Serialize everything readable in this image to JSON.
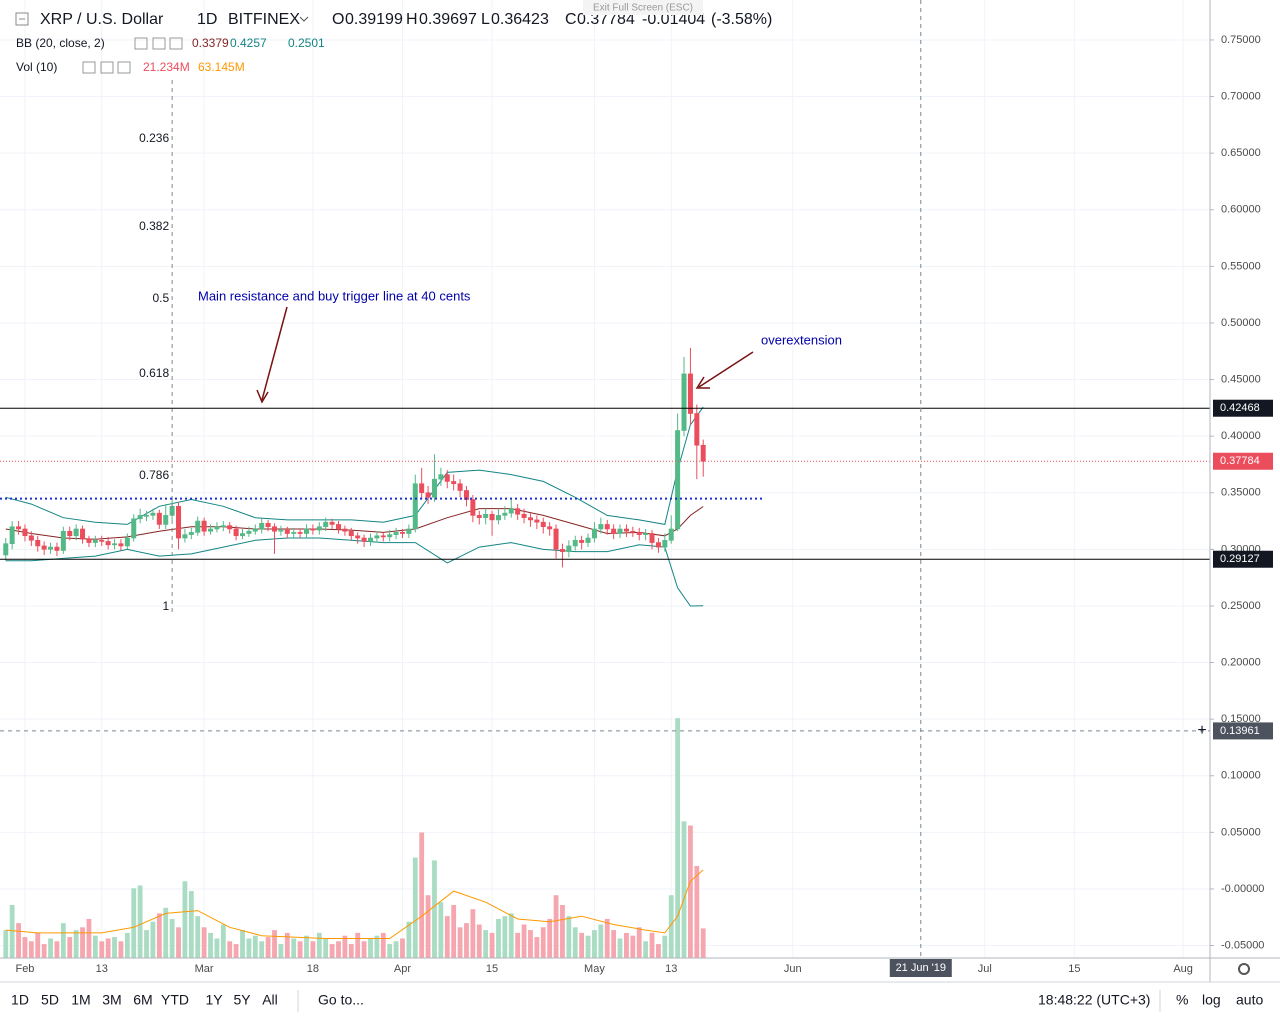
{
  "header": {
    "symbol": "XRP / U.S. Dollar",
    "interval": "1D",
    "exchange": "BITFINEX",
    "ohlc": [
      {
        "label": "O",
        "value": 0.39199
      },
      {
        "label": "H",
        "value": 0.39697
      },
      {
        "label": "L",
        "value": 0.36423
      },
      {
        "label": "C",
        "value": 0.37784
      }
    ],
    "change": -0.01404,
    "change_percent": {
      "value": -3.58,
      "label": "(-3.58%)"
    }
  },
  "indicators": {
    "bb_name": "BB (20, close, 2)",
    "vol_name": "Vol (10)",
    "vol_label": "21.234M",
    "vol_ma_label": "63.145M"
  },
  "tooltip": "Exit Full Screen (ESC)",
  "toolbar": {
    "ranges": [
      "1D",
      "5D",
      "1M",
      "3M",
      "6M",
      "YTD",
      "1Y",
      "5Y",
      "All"
    ],
    "goto": "Go to...",
    "clock": "18:48:22 (UTC+3)",
    "options": [
      "%",
      "log",
      "auto"
    ]
  },
  "chart_data": {
    "type": "candlestick",
    "x": [
      29,
      30,
      31,
      32,
      33,
      34,
      35,
      36,
      37,
      38,
      39,
      40,
      41,
      42,
      43,
      44,
      45,
      46,
      47,
      48,
      49,
      50,
      51,
      52,
      53,
      54,
      55,
      56,
      57,
      58,
      59,
      60,
      61,
      62,
      63,
      64,
      65,
      66,
      67,
      68,
      69,
      70,
      71,
      72,
      73,
      74,
      75,
      76,
      77,
      78,
      79,
      80,
      81,
      82,
      83,
      84,
      85,
      86,
      87,
      88,
      89,
      90,
      91,
      92,
      93,
      94,
      95,
      96,
      97,
      98,
      99,
      100,
      101,
      102,
      103,
      104,
      105,
      106,
      107,
      108,
      109,
      110,
      111,
      112,
      113,
      114,
      115,
      116,
      117,
      118,
      119,
      120,
      121,
      122,
      123,
      124,
      125,
      126,
      127,
      128,
      129,
      130,
      131,
      132,
      133,
      134,
      135,
      136,
      137,
      138
    ],
    "open": [
      0.295,
      0.305,
      0.32,
      0.318,
      0.312,
      0.308,
      0.303,
      0.3,
      0.302,
      0.299,
      0.316,
      0.312,
      0.318,
      0.309,
      0.306,
      0.308,
      0.307,
      0.304,
      0.305,
      0.303,
      0.31,
      0.327,
      0.33,
      0.33,
      0.332,
      0.322,
      0.33,
      0.338,
      0.31,
      0.313,
      0.315,
      0.325,
      0.316,
      0.318,
      0.32,
      0.321,
      0.318,
      0.312,
      0.314,
      0.316,
      0.318,
      0.323,
      0.32,
      0.316,
      0.317,
      0.314,
      0.315,
      0.314,
      0.318,
      0.317,
      0.32,
      0.324,
      0.322,
      0.318,
      0.316,
      0.312,
      0.31,
      0.307,
      0.31,
      0.312,
      0.311,
      0.313,
      0.315,
      0.314,
      0.318,
      0.358,
      0.35,
      0.346,
      0.362,
      0.366,
      0.36,
      0.358,
      0.352,
      0.344,
      0.33,
      0.328,
      0.331,
      0.326,
      0.33,
      0.332,
      0.336,
      0.331,
      0.328,
      0.326,
      0.324,
      0.32,
      0.318,
      0.3,
      0.298,
      0.303,
      0.308,
      0.306,
      0.31,
      0.318,
      0.322,
      0.318,
      0.314,
      0.318,
      0.316,
      0.315,
      0.313,
      0.314,
      0.306,
      0.302,
      0.308,
      0.318,
      0.405,
      0.455,
      0.42,
      0.39199
    ],
    "high": [
      0.31,
      0.325,
      0.325,
      0.322,
      0.316,
      0.312,
      0.307,
      0.306,
      0.306,
      0.32,
      0.32,
      0.322,
      0.321,
      0.312,
      0.312,
      0.312,
      0.311,
      0.309,
      0.309,
      0.314,
      0.331,
      0.336,
      0.334,
      0.336,
      0.335,
      0.34,
      0.345,
      0.342,
      0.318,
      0.319,
      0.329,
      0.328,
      0.322,
      0.324,
      0.325,
      0.324,
      0.321,
      0.318,
      0.32,
      0.322,
      0.327,
      0.326,
      0.323,
      0.321,
      0.32,
      0.319,
      0.318,
      0.322,
      0.322,
      0.324,
      0.328,
      0.327,
      0.325,
      0.321,
      0.319,
      0.315,
      0.313,
      0.314,
      0.316,
      0.315,
      0.317,
      0.319,
      0.318,
      0.322,
      0.366,
      0.372,
      0.356,
      0.384,
      0.372,
      0.37,
      0.366,
      0.362,
      0.356,
      0.348,
      0.334,
      0.336,
      0.334,
      0.336,
      0.338,
      0.344,
      0.34,
      0.336,
      0.332,
      0.33,
      0.328,
      0.324,
      0.322,
      0.305,
      0.308,
      0.312,
      0.312,
      0.314,
      0.324,
      0.328,
      0.326,
      0.322,
      0.322,
      0.322,
      0.32,
      0.319,
      0.318,
      0.317,
      0.31,
      0.314,
      0.33,
      0.42,
      0.47,
      0.478,
      0.428,
      0.39697
    ],
    "low": [
      0.29,
      0.3,
      0.313,
      0.307,
      0.303,
      0.298,
      0.295,
      0.296,
      0.294,
      0.296,
      0.308,
      0.308,
      0.305,
      0.302,
      0.302,
      0.303,
      0.3,
      0.3,
      0.299,
      0.3,
      0.307,
      0.323,
      0.325,
      0.326,
      0.318,
      0.318,
      0.326,
      0.3,
      0.306,
      0.309,
      0.312,
      0.312,
      0.313,
      0.315,
      0.316,
      0.314,
      0.308,
      0.309,
      0.311,
      0.313,
      0.314,
      0.316,
      0.296,
      0.312,
      0.31,
      0.31,
      0.31,
      0.31,
      0.313,
      0.313,
      0.316,
      0.318,
      0.314,
      0.312,
      0.308,
      0.305,
      0.302,
      0.303,
      0.306,
      0.307,
      0.307,
      0.309,
      0.31,
      0.31,
      0.315,
      0.344,
      0.34,
      0.342,
      0.356,
      0.354,
      0.352,
      0.346,
      0.338,
      0.324,
      0.322,
      0.322,
      0.312,
      0.322,
      0.326,
      0.328,
      0.326,
      0.323,
      0.32,
      0.318,
      0.314,
      0.312,
      0.292,
      0.284,
      0.293,
      0.299,
      0.3,
      0.302,
      0.306,
      0.314,
      0.313,
      0.309,
      0.31,
      0.311,
      0.311,
      0.308,
      0.308,
      0.3,
      0.297,
      0.298,
      0.305,
      0.316,
      0.4,
      0.41,
      0.362,
      0.36423
    ],
    "close": [
      0.305,
      0.32,
      0.318,
      0.312,
      0.308,
      0.303,
      0.3,
      0.302,
      0.299,
      0.316,
      0.312,
      0.318,
      0.309,
      0.306,
      0.308,
      0.307,
      0.304,
      0.305,
      0.303,
      0.31,
      0.327,
      0.33,
      0.33,
      0.332,
      0.322,
      0.33,
      0.338,
      0.31,
      0.313,
      0.315,
      0.325,
      0.316,
      0.318,
      0.32,
      0.321,
      0.318,
      0.312,
      0.314,
      0.316,
      0.318,
      0.323,
      0.32,
      0.316,
      0.317,
      0.314,
      0.315,
      0.314,
      0.318,
      0.317,
      0.32,
      0.324,
      0.322,
      0.318,
      0.316,
      0.312,
      0.31,
      0.307,
      0.31,
      0.312,
      0.311,
      0.313,
      0.315,
      0.314,
      0.318,
      0.358,
      0.35,
      0.346,
      0.362,
      0.366,
      0.36,
      0.358,
      0.352,
      0.344,
      0.33,
      0.328,
      0.331,
      0.326,
      0.33,
      0.332,
      0.336,
      0.331,
      0.328,
      0.326,
      0.324,
      0.32,
      0.318,
      0.3,
      0.298,
      0.303,
      0.308,
      0.306,
      0.31,
      0.318,
      0.322,
      0.318,
      0.314,
      0.318,
      0.316,
      0.315,
      0.313,
      0.314,
      0.306,
      0.302,
      0.308,
      0.318,
      0.405,
      0.455,
      0.42,
      0.39199,
      0.37784
    ],
    "up_color": "#53b987",
    "down_color": "#eb4d5c",
    "xlim": [
      28.1,
      217.2
    ],
    "xticks": [
      {
        "value": 32,
        "label": "Feb"
      },
      {
        "value": 44,
        "label": "13"
      },
      {
        "value": 60,
        "label": "Mar"
      },
      {
        "value": 77,
        "label": "18"
      },
      {
        "value": 91,
        "label": "Apr"
      },
      {
        "value": 105,
        "label": "15"
      },
      {
        "value": 121,
        "label": "May"
      },
      {
        "value": 133,
        "label": "13"
      },
      {
        "value": 152,
        "label": "Jun"
      },
      {
        "value": 182,
        "label": "Jul"
      },
      {
        "value": 196,
        "label": "15"
      },
      {
        "value": 213,
        "label": "Aug"
      }
    ],
    "ylim": [
      -0.061,
      0.7853
    ],
    "yticks": [
      {
        "value": 0.75,
        "label": "0.75000"
      },
      {
        "value": 0.7,
        "label": "0.70000"
      },
      {
        "value": 0.65,
        "label": "0.65000"
      },
      {
        "value": 0.6,
        "label": "0.60000"
      },
      {
        "value": 0.55,
        "label": "0.55000"
      },
      {
        "value": 0.5,
        "label": "0.50000"
      },
      {
        "value": 0.45,
        "label": "0.45000"
      },
      {
        "value": 0.4,
        "label": "0.40000"
      },
      {
        "value": 0.35,
        "label": "0.35000"
      },
      {
        "value": 0.3,
        "label": "0.30000"
      },
      {
        "value": 0.25,
        "label": "0.25000"
      },
      {
        "value": 0.2,
        "label": "0.20000"
      },
      {
        "value": 0.15,
        "label": "0.15000"
      },
      {
        "value": 0.1,
        "label": "0.10000"
      },
      {
        "value": 0.05,
        "label": "0.05000"
      },
      {
        "value": 0,
        "label": "-0.00000"
      },
      {
        "value": -0.05,
        "label": "-0.05000"
      }
    ],
    "grid": true,
    "bollinger": {
      "x": [
        29,
        33,
        38,
        43,
        48,
        53,
        58,
        63,
        68,
        73,
        78,
        83,
        88,
        93,
        98,
        103,
        108,
        113,
        118,
        123,
        128,
        132,
        134,
        136,
        138
      ],
      "middle": [
        0.318,
        0.314,
        0.31,
        0.309,
        0.311,
        0.316,
        0.32,
        0.32,
        0.318,
        0.318,
        0.318,
        0.317,
        0.315,
        0.318,
        0.328,
        0.336,
        0.336,
        0.33,
        0.322,
        0.314,
        0.315,
        0.312,
        0.318,
        0.33,
        0.3379
      ],
      "upper": [
        0.346,
        0.34,
        0.328,
        0.324,
        0.322,
        0.338,
        0.344,
        0.338,
        0.328,
        0.326,
        0.326,
        0.326,
        0.324,
        0.33,
        0.368,
        0.37,
        0.366,
        0.36,
        0.346,
        0.33,
        0.326,
        0.322,
        0.37,
        0.41,
        0.4257
      ],
      "lower": [
        0.29,
        0.29,
        0.292,
        0.294,
        0.3,
        0.294,
        0.296,
        0.302,
        0.308,
        0.31,
        0.31,
        0.308,
        0.306,
        0.306,
        0.288,
        0.302,
        0.306,
        0.3,
        0.298,
        0.298,
        0.304,
        0.302,
        0.266,
        0.25,
        0.2501
      ],
      "middle_color": "#872323",
      "band_color": "#138484"
    },
    "volume": {
      "values": [
        20,
        38,
        25,
        15,
        12,
        18,
        10,
        14,
        12,
        25,
        15,
        20,
        22,
        28,
        16,
        12,
        14,
        15,
        12,
        18,
        50,
        52,
        20,
        26,
        32,
        36,
        28,
        22,
        55,
        48,
        30,
        22,
        18,
        14,
        24,
        12,
        10,
        20,
        14,
        16,
        12,
        15,
        20,
        10,
        18,
        14,
        12,
        16,
        12,
        18,
        14,
        10,
        12,
        16,
        10,
        18,
        12,
        14,
        16,
        18,
        10,
        12,
        14,
        26,
        72,
        90,
        45,
        70,
        40,
        30,
        38,
        22,
        25,
        35,
        24,
        20,
        18,
        28,
        30,
        32,
        18,
        24,
        20,
        15,
        22,
        28,
        45,
        38,
        30,
        22,
        18,
        16,
        20,
        24,
        28,
        20,
        14,
        18,
        16,
        22,
        12,
        18,
        10,
        16,
        45,
        172,
        98,
        95,
        66,
        21.234
      ],
      "vlim": [
        0,
        185
      ],
      "ma_x": [
        29,
        34,
        39,
        44,
        49,
        54,
        59,
        64,
        69,
        74,
        79,
        84,
        89,
        94,
        99,
        104,
        109,
        114,
        119,
        124,
        129,
        132,
        134,
        136,
        138
      ],
      "ma": [
        20,
        18,
        18,
        18,
        22,
        32,
        34,
        22,
        16,
        15,
        14,
        14,
        14,
        30,
        48,
        40,
        28,
        26,
        30,
        24,
        20,
        18,
        30,
        55,
        63.145
      ],
      "up_color": "#a9dcc3",
      "down_color": "#f5a6ae",
      "ma_color": "#ff9800"
    },
    "levels": [
      0.42468,
      0.29127
    ],
    "support_line": 0.3448,
    "fib": {
      "x": 55,
      "levels": [
        {
          "ratio": 0.236,
          "price": 0.6626
        },
        {
          "ratio": 0.382,
          "price": 0.5849
        },
        {
          "ratio": 0.5,
          "price": 0.5212
        },
        {
          "ratio": 0.618,
          "price": 0.455
        },
        {
          "ratio": 0.786,
          "price": 0.3648
        },
        {
          "ratio": 1,
          "price": 0.2491
        }
      ]
    },
    "annotations": [
      "Main resistance and buy trigger line at 40 cents",
      "overextension"
    ],
    "crosshair": {
      "x": 172,
      "price": 0.13961,
      "date_label": "21 Jun '19"
    }
  }
}
